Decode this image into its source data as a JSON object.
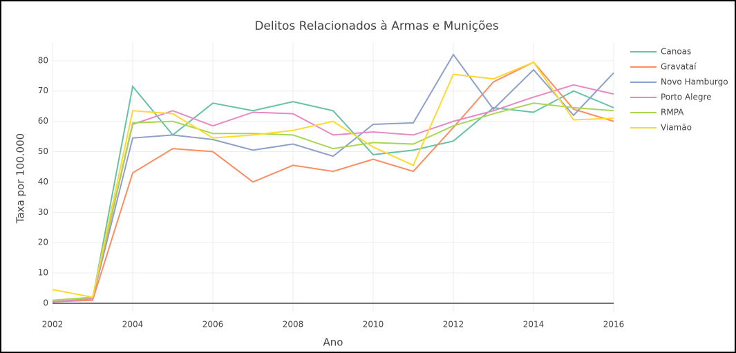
{
  "chart_data": {
    "type": "line",
    "title": "Delitos Relacionados à Armas e Munições",
    "x_label": "Ano",
    "y_label": "Taxa por 100.000",
    "x": [
      2002,
      2003,
      2004,
      2005,
      2006,
      2007,
      2008,
      2009,
      2010,
      2011,
      2012,
      2013,
      2014,
      2015,
      2016
    ],
    "series": [
      {
        "name": "Canoas",
        "color": "#66c2a5",
        "values": [
          0.5,
          1.5,
          71.5,
          55.5,
          66,
          63.5,
          66.5,
          63.5,
          49,
          50.5,
          53.5,
          64.5,
          63,
          70,
          64.5
        ]
      },
      {
        "name": "Gravataí",
        "color": "#fc8d62",
        "values": [
          0.5,
          1,
          43,
          51,
          50,
          40,
          45.5,
          43.5,
          47.5,
          43.5,
          58,
          73,
          79.5,
          64,
          60
        ]
      },
      {
        "name": "Novo Hamburgo",
        "color": "#8da0cb",
        "values": [
          0.5,
          1.5,
          54.5,
          55.5,
          54,
          50.5,
          52.5,
          48.5,
          59,
          59.5,
          82,
          64,
          77,
          62,
          76
        ]
      },
      {
        "name": "Porto Alegre",
        "color": "#e78ac3",
        "values": [
          0.5,
          1.5,
          59,
          63.5,
          58.5,
          63,
          62.5,
          55.5,
          56.5,
          55.5,
          60,
          63.5,
          68,
          72,
          69
        ]
      },
      {
        "name": "RMPA",
        "color": "#a6d854",
        "values": [
          1,
          2,
          59.5,
          60,
          56,
          56,
          55.5,
          51,
          53,
          52.5,
          58.5,
          62.5,
          66,
          64.5,
          63.5
        ]
      },
      {
        "name": "Viamão",
        "color": "#ffd92f",
        "values": [
          4.5,
          2,
          63.5,
          62.5,
          54.5,
          55.5,
          57,
          60,
          51.5,
          45.5,
          75.5,
          74,
          79.5,
          60.5,
          61
        ]
      }
    ],
    "xlim": [
      2002,
      2016
    ],
    "xticks": [
      2002,
      2004,
      2006,
      2008,
      2010,
      2012,
      2014,
      2016
    ],
    "ylim": [
      -3,
      86
    ],
    "yticks": [
      0,
      10,
      20,
      30,
      40,
      50,
      60,
      70,
      80
    ],
    "grid": true
  }
}
